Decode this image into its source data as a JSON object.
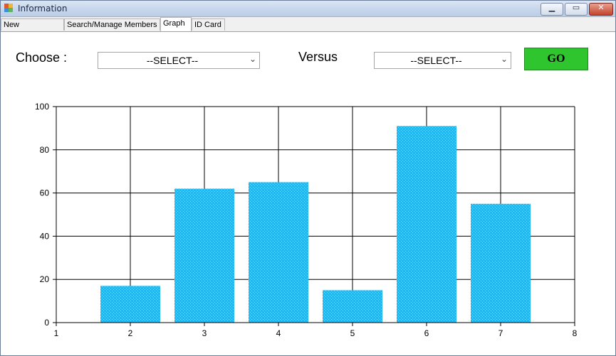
{
  "window": {
    "title": "Information"
  },
  "tabs": [
    {
      "label": "New Registration"
    },
    {
      "label": "Search/Manage Members"
    },
    {
      "label": "Graph"
    },
    {
      "label": "ID Card"
    }
  ],
  "form": {
    "choose_label": "Choose :",
    "choose_value": "--SELECT--",
    "versus_label": "Versus",
    "versus_value": "--SELECT--",
    "go_label": "GO"
  },
  "colors": {
    "bar": "#22b7ee",
    "go_button": "#2ec52e"
  },
  "chart_data": {
    "type": "bar",
    "title": "",
    "xlabel": "",
    "ylabel": "",
    "x": [
      2,
      3,
      4,
      5,
      6,
      7
    ],
    "values": [
      17,
      62,
      65,
      15,
      91,
      55
    ],
    "xlim": [
      1,
      8
    ],
    "ylim": [
      0,
      100
    ],
    "xticks": [
      1,
      2,
      3,
      4,
      5,
      6,
      7,
      8
    ],
    "yticks": [
      0,
      20,
      40,
      60,
      80,
      100
    ],
    "grid": true,
    "legend": "none"
  }
}
